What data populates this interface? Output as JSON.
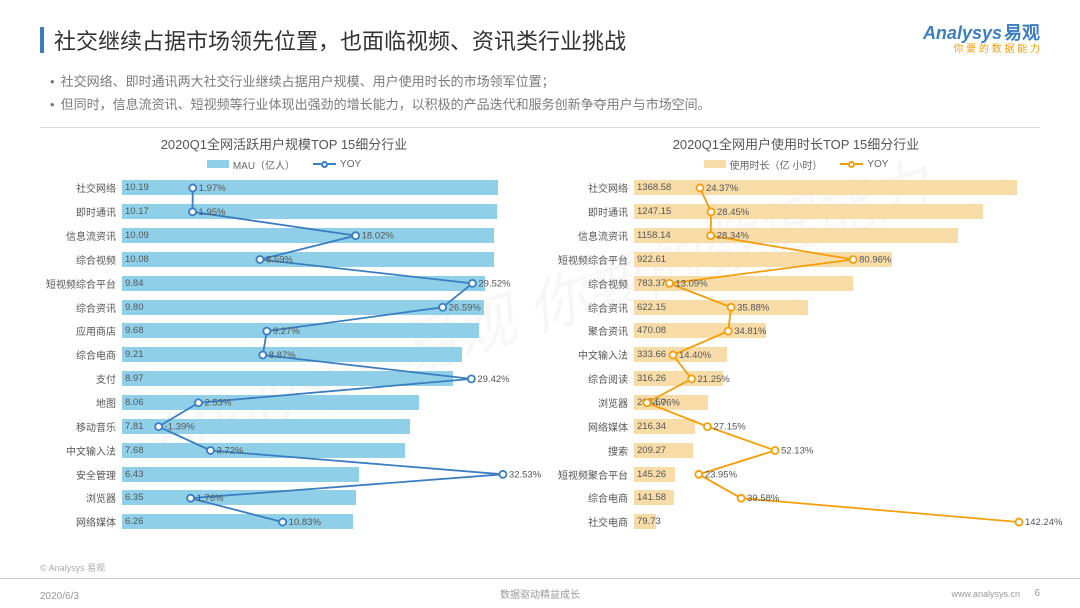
{
  "header": {
    "title": "社交继续占据市场领先位置，也面临视频、资讯类行业挑战",
    "logo_en": "Analysys",
    "logo_cn": "易观",
    "logo_tag": "你 要 的 数 据 能 力"
  },
  "bullets": [
    "社交网络、即时通讯两大社交行业继续占据用户规模、用户使用时长的市场领军位置；",
    "但同时，信息流资讯、短视频等行业体现出强劲的增长能力，以积极的产品迭代和服务创新争夺用户与市场空间。"
  ],
  "colors": {
    "title_bar": "#3b7ec0",
    "bar_left": "#8fd0e8",
    "line_left": "#3b7ec0",
    "bar_right": "#f7dca8",
    "line_right": "#f59e0b",
    "grid": "#e0e0e0",
    "text": "#555555"
  },
  "chart_left": {
    "title": "2020Q1全网活跃用户规模TOP 15细分行业",
    "legend_bar": "MAU（亿人）",
    "legend_line": "YOY",
    "bar_max": 11,
    "yoy_max": 35,
    "yoy_min": -5,
    "rows": [
      {
        "cat": "社交网络",
        "bar": 10.19,
        "yoy": 1.97
      },
      {
        "cat": "即时通讯",
        "bar": 10.17,
        "yoy": 1.95
      },
      {
        "cat": "信息流资讯",
        "bar": 10.09,
        "yoy": 18.02
      },
      {
        "cat": "综合视频",
        "bar": 10.08,
        "yoy": 8.59
      },
      {
        "cat": "短视频综合平台",
        "bar": 9.84,
        "yoy": 29.52
      },
      {
        "cat": "综合资讯",
        "bar": 9.8,
        "yoy": 26.59
      },
      {
        "cat": "应用商店",
        "bar": 9.68,
        "yoy": 9.27
      },
      {
        "cat": "综合电商",
        "bar": 9.21,
        "yoy": 8.87
      },
      {
        "cat": "支付",
        "bar": 8.97,
        "yoy": 29.42
      },
      {
        "cat": "地图",
        "bar": 8.06,
        "yoy": 2.53
      },
      {
        "cat": "移动音乐",
        "bar": 7.81,
        "yoy": -1.39
      },
      {
        "cat": "中文输入法",
        "bar": 7.68,
        "yoy": 3.72
      },
      {
        "cat": "安全管理",
        "bar": 6.43,
        "yoy": 32.53
      },
      {
        "cat": "浏览器",
        "bar": 6.35,
        "yoy": 1.76
      },
      {
        "cat": "网络媒体",
        "bar": 6.26,
        "yoy": 10.83
      }
    ]
  },
  "chart_right": {
    "title": "2020Q1全网用户使用时长TOP 15细分行业",
    "legend_bar": "使用时长（亿 小时）",
    "legend_line": "YOY",
    "bar_max": 1450,
    "yoy_max": 150,
    "yoy_min": 0,
    "rows": [
      {
        "cat": "社交网络",
        "bar": 1368.58,
        "yoy": 24.37
      },
      {
        "cat": "即时通讯",
        "bar": 1247.15,
        "yoy": 28.45
      },
      {
        "cat": "信息流资讯",
        "bar": 1158.14,
        "yoy": 28.34
      },
      {
        "cat": "短视频综合平台",
        "bar": 922.61,
        "yoy": 80.96
      },
      {
        "cat": "综合视频",
        "bar": 783.37,
        "yoy": 13.09
      },
      {
        "cat": "综合资讯",
        "bar": 622.15,
        "yoy": 35.88
      },
      {
        "cat": "聚合资讯",
        "bar": 470.08,
        "yoy": 34.81
      },
      {
        "cat": "中文输入法",
        "bar": 333.66,
        "yoy": 14.4
      },
      {
        "cat": "综合阅读",
        "bar": 316.26,
        "yoy": 21.25
      },
      {
        "cat": "浏览器",
        "bar": 265.5,
        "yoy": 4.76
      },
      {
        "cat": "网络媒体",
        "bar": 216.34,
        "yoy": 27.15
      },
      {
        "cat": "搜索",
        "bar": 209.27,
        "yoy": 52.13
      },
      {
        "cat": "短视频聚合平台",
        "bar": 145.26,
        "yoy": 23.95
      },
      {
        "cat": "综合电商",
        "bar": 141.58,
        "yoy": 39.58
      },
      {
        "cat": "社交电商",
        "bar": 79.73,
        "yoy": 142.24
      }
    ]
  },
  "footer": {
    "source": "© Analysys 易观",
    "date": "2020/6/3",
    "center": "数据驱动精益成长",
    "url": "www.analysys.cn",
    "page": "6"
  },
  "watermark": "Analysys 易观  你要的数据能力"
}
